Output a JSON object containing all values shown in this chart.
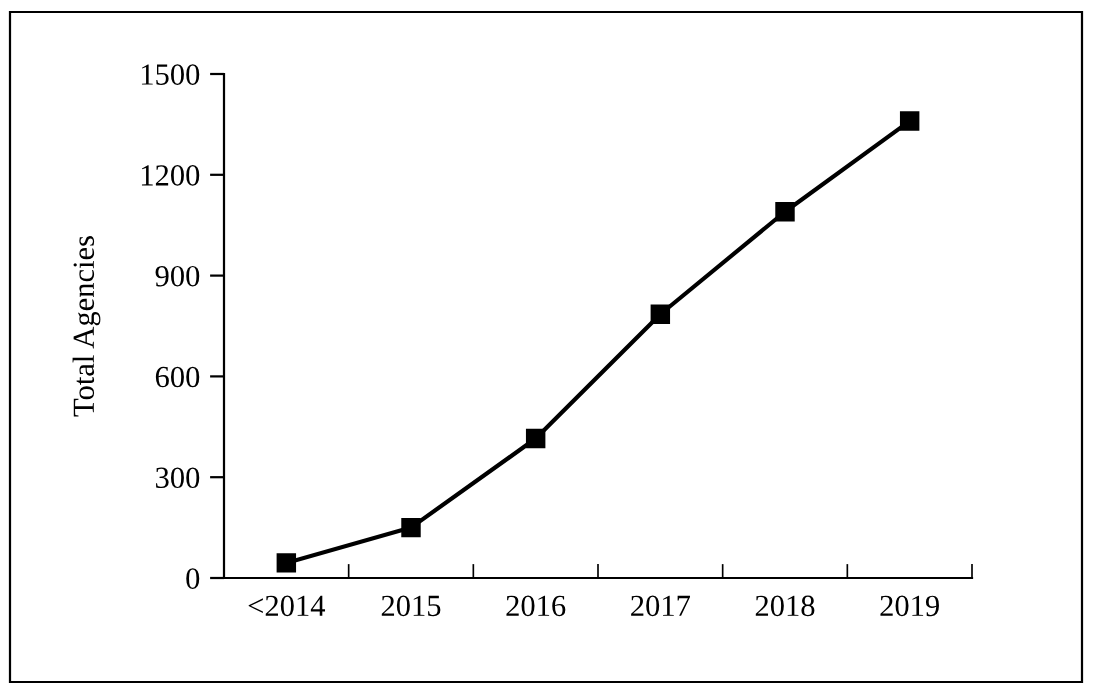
{
  "chart_data": {
    "type": "line",
    "ylabel": "Total Agencies",
    "categories": [
      "<2014",
      "2015",
      "2016",
      "2017",
      "2018",
      "2019"
    ],
    "values": [
      45,
      150,
      415,
      785,
      1090,
      1360
    ],
    "color": "#000000",
    "marker": "square",
    "line_style": "solid",
    "ylim": [
      0,
      1500
    ],
    "yticks": [
      0,
      300,
      600,
      900,
      1200,
      1500
    ],
    "grid": false,
    "legend": false
  }
}
